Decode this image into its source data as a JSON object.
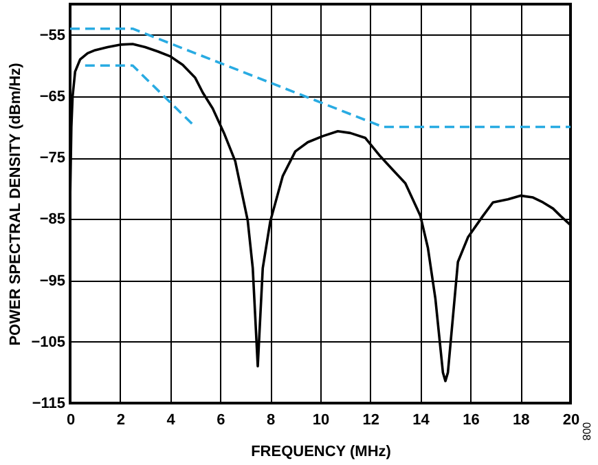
{
  "chart_data": {
    "type": "line",
    "xlabel": "FREQUENCY (MHz)",
    "ylabel": "POWER SPECTRAL DENSITY (dBm/Hz)",
    "xlim": [
      0,
      20
    ],
    "xticks": [
      0,
      2,
      4,
      6,
      8,
      10,
      12,
      14,
      16,
      18,
      20
    ],
    "ylim": [
      -115,
      -50
    ],
    "yticks": [
      -115,
      -105,
      -95,
      -85,
      -75,
      -65,
      -55
    ],
    "grid": true,
    "marker": "none",
    "series": [
      {
        "color": "#000000",
        "line_style": "solid",
        "x": [
          0,
          0.05,
          0.1,
          0.2,
          0.4,
          0.7,
          1,
          1.5,
          2,
          2.5,
          3,
          3.5,
          4,
          4.5,
          5,
          5.3,
          5.7,
          6.15,
          6.6,
          7.1,
          7.3,
          7.5,
          7.7,
          8.0,
          8.5,
          9.0,
          9.5,
          10.1,
          10.7,
          11.2,
          11.8,
          12.4,
          12.9,
          13.4,
          14.0,
          14.3,
          14.6,
          14.9,
          15.0,
          15.1,
          15.3,
          15.5,
          15.9,
          16.5,
          16.9,
          17.5,
          18.0,
          18.5,
          18.9,
          19.3,
          19.6,
          20
        ],
        "values": [
          -82,
          -70,
          -65,
          -61,
          -59,
          -58,
          -57.5,
          -57,
          -56.6,
          -56.5,
          -57,
          -57.7,
          -58.5,
          -59.9,
          -62,
          -64.4,
          -67,
          -71,
          -75.6,
          -85.3,
          -93,
          -109,
          -93,
          -85.4,
          -78,
          -74,
          -72.5,
          -71.5,
          -70.7,
          -71,
          -71.8,
          -74.8,
          -77,
          -79.2,
          -84.5,
          -89.7,
          -98,
          -110,
          -111.4,
          -110,
          -101,
          -92,
          -88,
          -84.5,
          -82.3,
          -81.8,
          -81.2,
          -81.5,
          -82.3,
          -83.3,
          -84.5,
          -86
        ]
      },
      {
        "color": "#29abe2",
        "line_style": "dashed",
        "x": [
          0,
          2.5,
          12.5,
          20
        ],
        "values": [
          -54,
          -54,
          -70,
          -70
        ]
      },
      {
        "color": "#29abe2",
        "line_style": "dashed",
        "x": [
          0.6,
          2.5,
          5
        ],
        "values": [
          -60,
          -60,
          -70
        ]
      }
    ],
    "annotations": [
      "008"
    ]
  }
}
